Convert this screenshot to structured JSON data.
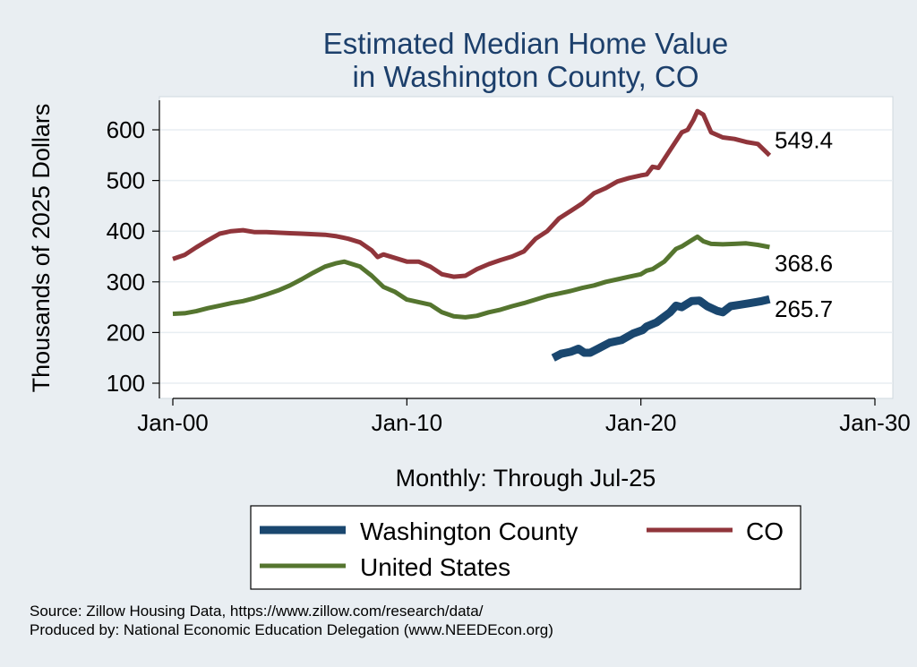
{
  "chart_data": {
    "type": "line",
    "title": [
      "Estimated Median Home Value",
      "in Washington County, CO"
    ],
    "xlabel": "Monthly: Through Jul-25",
    "ylabel": "Thousands of 2025 Dollars",
    "x_range": [
      "2000-01",
      "2030-01"
    ],
    "ylim": [
      100,
      650
    ],
    "x_ticks": [
      {
        "date": "2000-01",
        "label": "Jan-00"
      },
      {
        "date": "2010-01",
        "label": "Jan-10"
      },
      {
        "date": "2020-01",
        "label": "Jan-20"
      },
      {
        "date": "2030-01",
        "label": "Jan-30"
      }
    ],
    "y_ticks": [
      100,
      200,
      300,
      400,
      500,
      600
    ],
    "grid": true,
    "legend_position": "bottom",
    "series": [
      {
        "name": "Washington County",
        "color": "#1a476f",
        "end_label": "265.7",
        "points": [
          [
            "2016-04",
            150
          ],
          [
            "2016-08",
            158
          ],
          [
            "2017-01",
            162
          ],
          [
            "2017-05",
            168
          ],
          [
            "2017-08",
            160
          ],
          [
            "2017-11",
            160
          ],
          [
            "2018-03",
            168
          ],
          [
            "2018-09",
            180
          ],
          [
            "2019-03",
            185
          ],
          [
            "2019-09",
            198
          ],
          [
            "2020-02",
            205
          ],
          [
            "2020-04",
            212
          ],
          [
            "2020-09",
            220
          ],
          [
            "2021-04",
            240
          ],
          [
            "2021-07",
            253
          ],
          [
            "2021-10",
            250
          ],
          [
            "2022-03",
            262
          ],
          [
            "2022-07",
            263
          ],
          [
            "2022-11",
            252
          ],
          [
            "2023-04",
            243
          ],
          [
            "2023-07",
            240
          ],
          [
            "2023-11",
            252
          ],
          [
            "2024-04",
            255
          ],
          [
            "2024-09",
            258
          ],
          [
            "2025-03",
            262
          ],
          [
            "2025-07",
            265.7
          ]
        ]
      },
      {
        "name": "CO",
        "color": "#90353b",
        "end_label": "549.4",
        "points": [
          [
            "2000-01",
            345
          ],
          [
            "2000-07",
            353
          ],
          [
            "2001-01",
            368
          ],
          [
            "2001-07",
            382
          ],
          [
            "2002-01",
            395
          ],
          [
            "2002-07",
            400
          ],
          [
            "2003-01",
            402
          ],
          [
            "2003-07",
            398
          ],
          [
            "2004-01",
            398
          ],
          [
            "2004-07",
            397
          ],
          [
            "2005-01",
            396
          ],
          [
            "2005-07",
            395
          ],
          [
            "2006-01",
            394
          ],
          [
            "2006-07",
            393
          ],
          [
            "2007-01",
            390
          ],
          [
            "2007-07",
            385
          ],
          [
            "2008-01",
            378
          ],
          [
            "2008-07",
            362
          ],
          [
            "2008-10",
            349
          ],
          [
            "2009-01",
            354
          ],
          [
            "2009-07",
            347
          ],
          [
            "2010-01",
            340
          ],
          [
            "2010-07",
            340
          ],
          [
            "2011-01",
            330
          ],
          [
            "2011-07",
            315
          ],
          [
            "2012-01",
            310
          ],
          [
            "2012-07",
            312
          ],
          [
            "2013-01",
            325
          ],
          [
            "2013-07",
            335
          ],
          [
            "2014-01",
            343
          ],
          [
            "2014-07",
            350
          ],
          [
            "2015-01",
            360
          ],
          [
            "2015-07",
            385
          ],
          [
            "2016-01",
            400
          ],
          [
            "2016-07",
            425
          ],
          [
            "2017-01",
            440
          ],
          [
            "2017-07",
            455
          ],
          [
            "2018-01",
            475
          ],
          [
            "2018-07",
            485
          ],
          [
            "2019-01",
            498
          ],
          [
            "2019-07",
            505
          ],
          [
            "2020-01",
            510
          ],
          [
            "2020-04",
            512
          ],
          [
            "2020-07",
            527
          ],
          [
            "2020-10",
            525
          ],
          [
            "2021-04",
            560
          ],
          [
            "2021-10",
            595
          ],
          [
            "2022-01",
            600
          ],
          [
            "2022-04",
            620
          ],
          [
            "2022-06",
            637
          ],
          [
            "2022-09",
            630
          ],
          [
            "2023-01",
            595
          ],
          [
            "2023-07",
            585
          ],
          [
            "2024-01",
            582
          ],
          [
            "2024-07",
            576
          ],
          [
            "2025-01",
            572
          ],
          [
            "2025-07",
            549.4
          ]
        ]
      },
      {
        "name": "United States",
        "color": "#55752f",
        "end_label": "368.6",
        "points": [
          [
            "2000-01",
            237
          ],
          [
            "2000-07",
            238
          ],
          [
            "2001-01",
            242
          ],
          [
            "2001-07",
            248
          ],
          [
            "2002-01",
            253
          ],
          [
            "2002-07",
            258
          ],
          [
            "2003-01",
            262
          ],
          [
            "2003-07",
            268
          ],
          [
            "2004-01",
            275
          ],
          [
            "2004-07",
            283
          ],
          [
            "2005-01",
            293
          ],
          [
            "2005-07",
            305
          ],
          [
            "2006-01",
            318
          ],
          [
            "2006-07",
            330
          ],
          [
            "2007-01",
            337
          ],
          [
            "2007-05",
            340
          ],
          [
            "2008-01",
            330
          ],
          [
            "2008-07",
            312
          ],
          [
            "2009-01",
            290
          ],
          [
            "2009-07",
            280
          ],
          [
            "2010-01",
            265
          ],
          [
            "2010-07",
            260
          ],
          [
            "2011-01",
            255
          ],
          [
            "2011-07",
            240
          ],
          [
            "2012-01",
            232
          ],
          [
            "2012-07",
            230
          ],
          [
            "2013-01",
            233
          ],
          [
            "2013-07",
            240
          ],
          [
            "2014-01",
            245
          ],
          [
            "2014-07",
            252
          ],
          [
            "2015-01",
            258
          ],
          [
            "2015-07",
            265
          ],
          [
            "2016-01",
            272
          ],
          [
            "2016-07",
            277
          ],
          [
            "2017-01",
            282
          ],
          [
            "2017-07",
            288
          ],
          [
            "2018-01",
            293
          ],
          [
            "2018-07",
            300
          ],
          [
            "2019-01",
            305
          ],
          [
            "2019-07",
            310
          ],
          [
            "2020-01",
            315
          ],
          [
            "2020-04",
            322
          ],
          [
            "2020-07",
            325
          ],
          [
            "2021-01",
            340
          ],
          [
            "2021-07",
            365
          ],
          [
            "2021-10",
            370
          ],
          [
            "2022-03",
            382
          ],
          [
            "2022-06",
            389
          ],
          [
            "2022-09",
            380
          ],
          [
            "2023-01",
            375
          ],
          [
            "2023-07",
            374
          ],
          [
            "2024-01",
            375
          ],
          [
            "2024-07",
            376
          ],
          [
            "2025-01",
            373
          ],
          [
            "2025-07",
            368.6
          ]
        ]
      }
    ],
    "legend": [
      {
        "name": "Washington County"
      },
      {
        "name": "CO"
      },
      {
        "name": "United States"
      }
    ]
  },
  "source": {
    "line1": "Source: Zillow Housing Data, https://www.zillow.com/research/data/",
    "line2": "Produced by: National Economic Education Delegation (www.NEEDEcon.org)"
  }
}
